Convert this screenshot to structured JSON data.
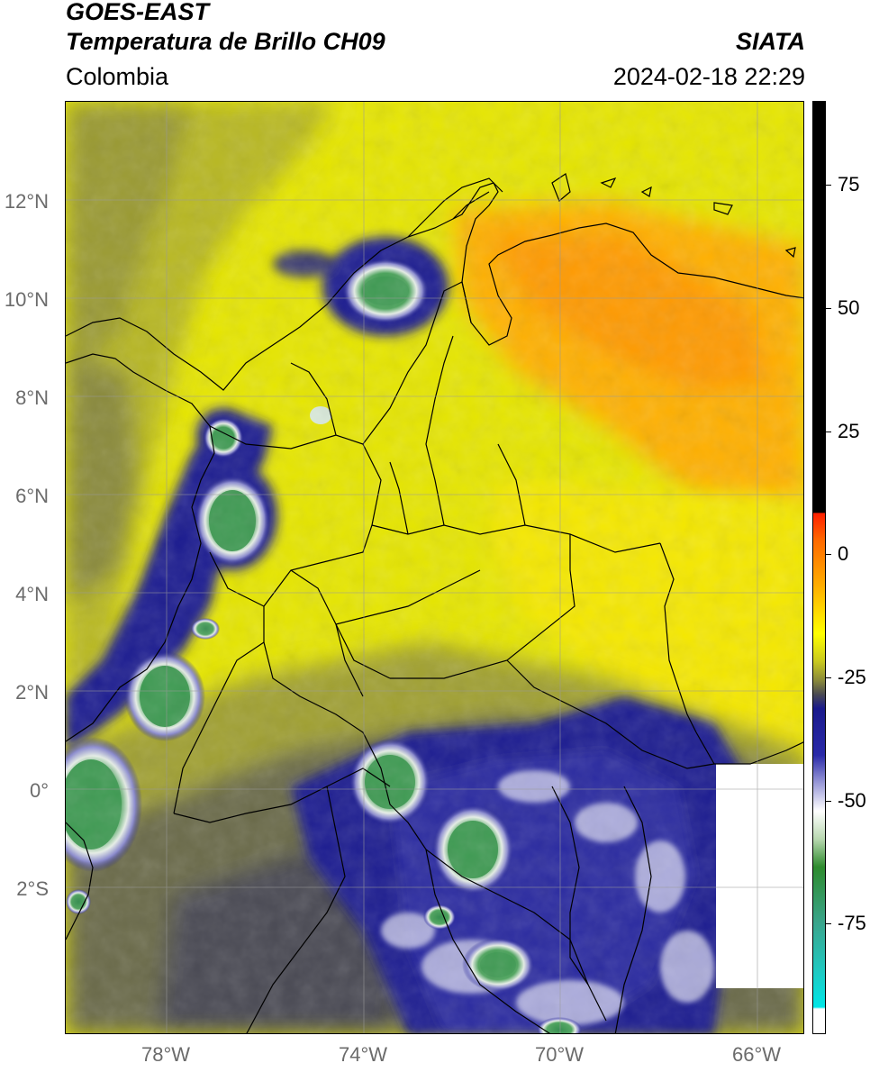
{
  "header": {
    "satellite": "GOES-EAST",
    "product": "Temperatura de Brillo CH09",
    "brand": "SIATA",
    "region": "Colombia",
    "datetime": "2024-02-18 22:29"
  },
  "map": {
    "lon_range": [
      -80,
      -65
    ],
    "lat_range": [
      -5,
      14
    ],
    "lat_ticks": [
      "12°N",
      "10°N",
      "8°N",
      "6°N",
      "4°N",
      "2°N",
      "0°",
      "2°S"
    ],
    "lon_ticks": [
      "78°W",
      "74°W",
      "70°W",
      "66°W"
    ],
    "grid": true,
    "no_data_patch": "white"
  },
  "colorbar": {
    "ticks": [
      "75",
      "50",
      "25",
      "0",
      "-25",
      "-50",
      "-75"
    ],
    "range": [
      -90,
      90
    ],
    "colors": {
      "warm_black": "#000000",
      "red": "#ff2a00",
      "orange": "#ff8800",
      "yellow": "#ffff00",
      "olive": "#a8a820",
      "gray": "#4a4a52",
      "navy": "#1a1a8c",
      "white": "#ffffff",
      "green": "#2e8b2e",
      "teal": "#3aa58c",
      "cyan": "#00e0e0"
    }
  }
}
